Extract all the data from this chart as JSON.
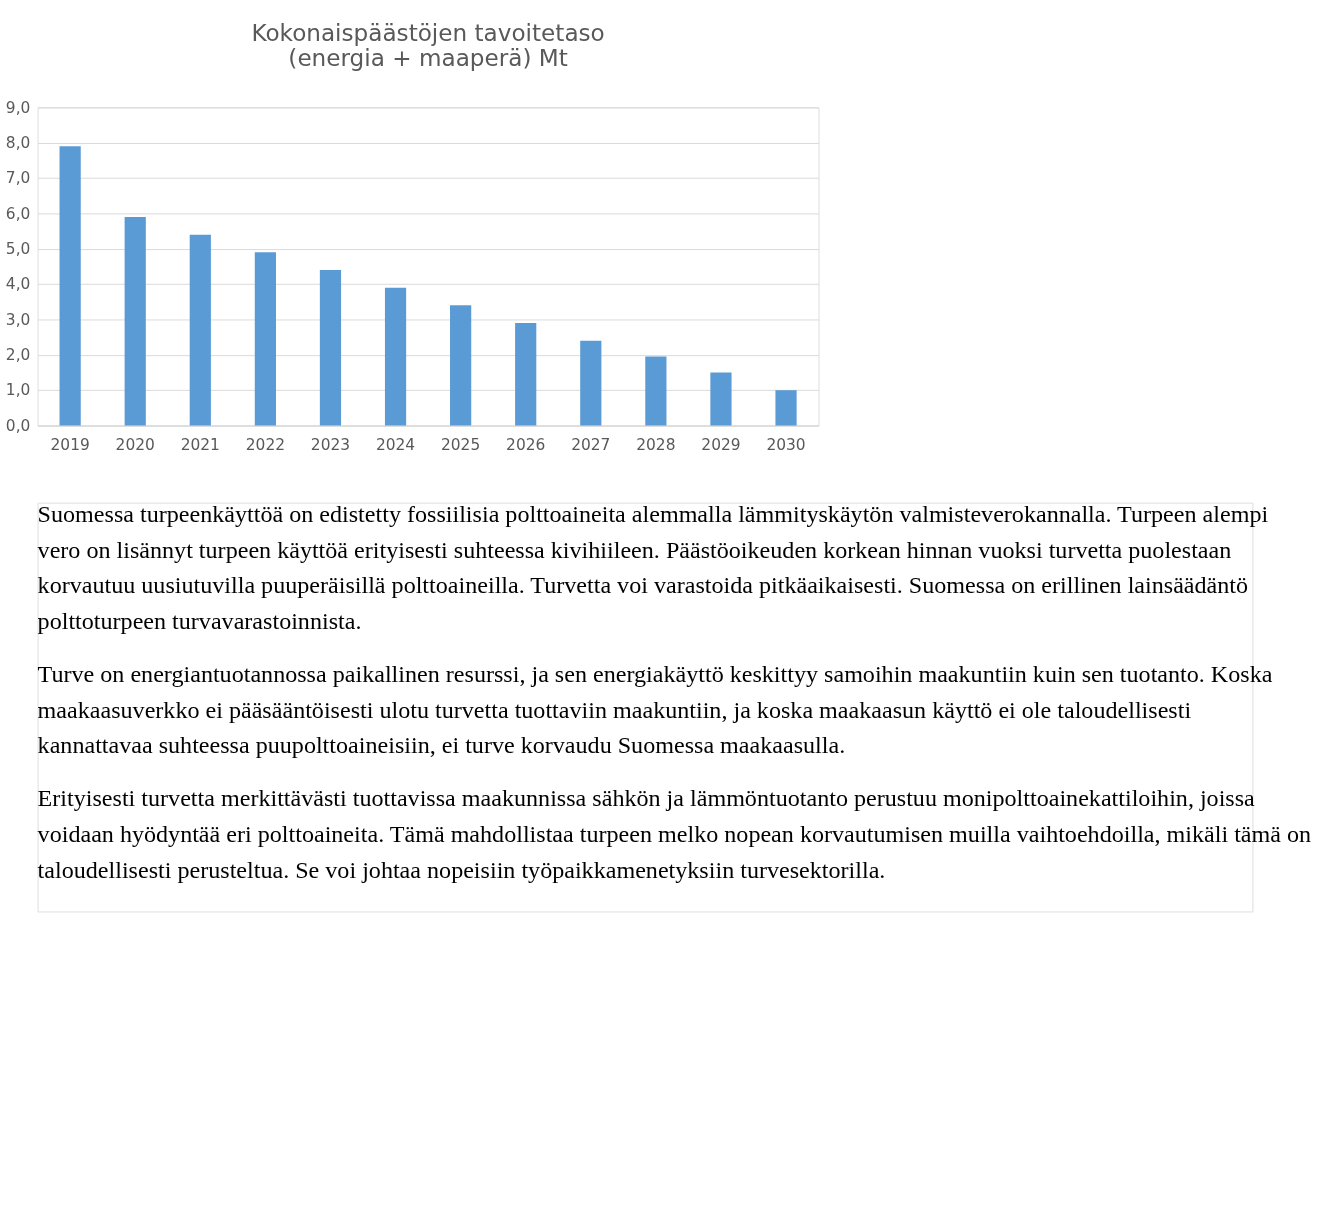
{
  "chart_data": {
    "type": "bar",
    "title": "Kokonaispäästöjen tavoitetaso (energia + maaperä) Mt",
    "categories": [
      "2019",
      "2020",
      "2021",
      "2022",
      "2023",
      "2024",
      "2025",
      "2026",
      "2027",
      "2028",
      "2029",
      "2030"
    ],
    "values": [
      7.9,
      5.9,
      5.4,
      4.9,
      4.4,
      3.9,
      3.4,
      2.9,
      2.4,
      1.95,
      1.5,
      1.0
    ],
    "color": "#5b9bd5",
    "ylim": [
      0,
      9
    ],
    "yticks": [
      {
        "value": 0,
        "label": "0,0"
      },
      {
        "value": 1,
        "label": "1,0"
      },
      {
        "value": 2,
        "label": "2,0"
      },
      {
        "value": 3,
        "label": "3,0"
      },
      {
        "value": 4,
        "label": "4,0"
      },
      {
        "value": 5,
        "label": "5,0"
      },
      {
        "value": 6,
        "label": "6,0"
      },
      {
        "value": 7,
        "label": "7,0"
      },
      {
        "value": 8,
        "label": "8,0"
      },
      {
        "value": 9,
        "label": "9,0"
      }
    ],
    "grid": "y",
    "annotations": [
      "Suomessa turpeenkäyttöä on edistetty fossiilisia polttoaineita alemmalla lämmityskäytön valmisteverokannalla. Turpeen alempi vero on lisännyt turpeen käyttöä erityisesti suhteessa kivihiileen. Päästöoikeuden korkean hinnan vuoksi turvetta puolestaan korvautuu uusiutuvilla puuperäisillä polttoaineilla. Turvetta voi varastoida pitkäaikaisesti. Suomessa on erillinen lainsäädäntö polttoturpeen turvavarastoinnista.",
      "Turve on energiantuotannossa paikallinen resurssi, ja sen energiakäyttö keskittyy samoihin maakuntiin kuin sen tuotanto. Koska maakaasuverkko ei pääsääntöisesti ulotu turvetta tuottaviin maakuntiin, ja koska maakaasun käyttö ei ole taloudellisesti kannattavaa suhteessa puupolttoaineisiin, ei turve korvaudu Suomessa maakaasulla.",
      "Erityisesti turvetta merkittävästi tuottavissa maakunnissa sähkön ja lämmöntuotanto perustuu monipolttoainekattiloihin, joissa voidaan hyödyntää eri polttoaineita. Tämä mahdollistaa turpeen melko nopean korvautumisen muilla vaihtoehdoilla, mikäli tämä on taloudellisesti perusteltua. Se voi johtaa nopeisiin työpaikkamenetyksiin turvesektorilla."
    ]
  }
}
